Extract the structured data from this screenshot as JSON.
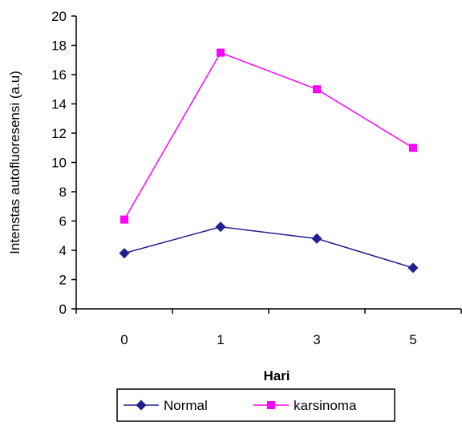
{
  "chart_data": {
    "type": "line",
    "title": "",
    "xlabel": "Hari",
    "ylabel": "Intenstas autofluoresensi (a.u)",
    "categories": [
      "0",
      "1",
      "3",
      "5"
    ],
    "ylim": [
      0,
      20
    ],
    "yticks": [
      0,
      2,
      4,
      6,
      8,
      10,
      12,
      14,
      16,
      18,
      20
    ],
    "grid": false,
    "legend_position": "bottom",
    "series": [
      {
        "name": "Normal",
        "values": [
          3.8,
          5.6,
          4.8,
          2.8
        ],
        "color": "#1f1f8f",
        "marker": "diamond"
      },
      {
        "name": "karsinoma",
        "values": [
          6.1,
          17.5,
          15.0,
          11.0
        ],
        "color": "#ff00ff",
        "marker": "square"
      }
    ]
  }
}
